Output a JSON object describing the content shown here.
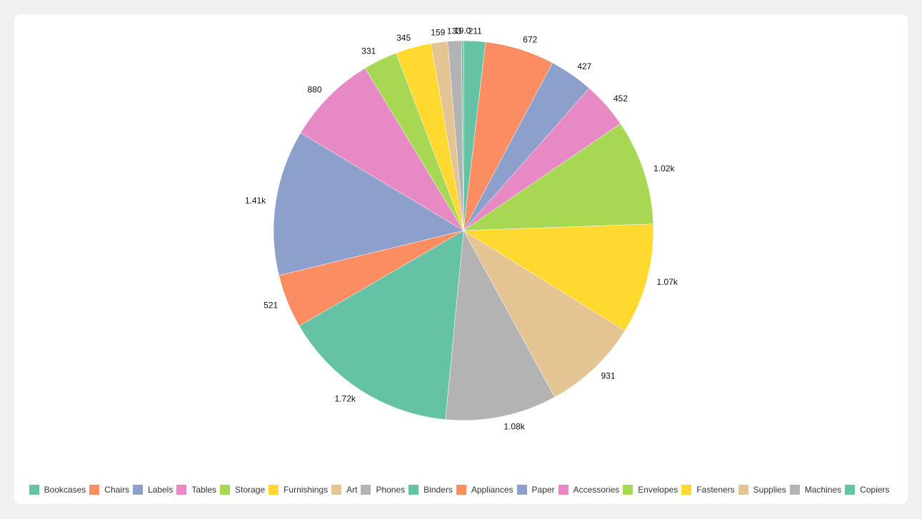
{
  "chart_data": {
    "type": "pie",
    "title": "",
    "start_angle_deg": 0,
    "direction": "clockwise",
    "categories": [
      "Bookcases",
      "Chairs",
      "Labels",
      "Tables",
      "Storage",
      "Furnishings",
      "Art",
      "Phones",
      "Binders",
      "Appliances",
      "Paper",
      "Accessories",
      "Envelopes",
      "Fasteners",
      "Supplies",
      "Machines",
      "Copiers"
    ],
    "values": [
      211,
      672,
      427,
      452,
      1020,
      1070,
      931,
      1080,
      1720,
      521,
      1410,
      880,
      331,
      345,
      159,
      133,
      19.0
    ],
    "labels": [
      "211",
      "672",
      "427",
      "452",
      "1.02k",
      "1.07k",
      "931",
      "1.08k",
      "1.72k",
      "521",
      "1.41k",
      "880",
      "331",
      "345",
      "159",
      "133",
      "19.0"
    ],
    "colors": [
      "#66c2a5",
      "#fc8d62",
      "#8da0cb",
      "#e78ac3",
      "#a6d854",
      "#ffd92f",
      "#e5c494",
      "#b3b3b3",
      "#66c2a5",
      "#fc8d62",
      "#8da0cb",
      "#e78ac3",
      "#a6d854",
      "#ffd92f",
      "#e5c494",
      "#b3b3b3",
      "#66c2a5"
    ],
    "legend_position": "bottom"
  },
  "legend": {
    "items": [
      {
        "label": "Bookcases",
        "color": "#66c2a5"
      },
      {
        "label": "Chairs",
        "color": "#fc8d62"
      },
      {
        "label": "Labels",
        "color": "#8da0cb"
      },
      {
        "label": "Tables",
        "color": "#e78ac3"
      },
      {
        "label": "Storage",
        "color": "#a6d854"
      },
      {
        "label": "Furnishings",
        "color": "#ffd92f"
      },
      {
        "label": "Art",
        "color": "#e5c494"
      },
      {
        "label": "Phones",
        "color": "#b3b3b3"
      },
      {
        "label": "Binders",
        "color": "#66c2a5"
      },
      {
        "label": "Appliances",
        "color": "#fc8d62"
      },
      {
        "label": "Paper",
        "color": "#8da0cb"
      },
      {
        "label": "Accessories",
        "color": "#e78ac3"
      },
      {
        "label": "Envelopes",
        "color": "#a6d854"
      },
      {
        "label": "Fasteners",
        "color": "#ffd92f"
      },
      {
        "label": "Supplies",
        "color": "#e5c494"
      },
      {
        "label": "Machines",
        "color": "#b3b3b3"
      },
      {
        "label": "Copiers",
        "color": "#66c2a5"
      }
    ]
  }
}
